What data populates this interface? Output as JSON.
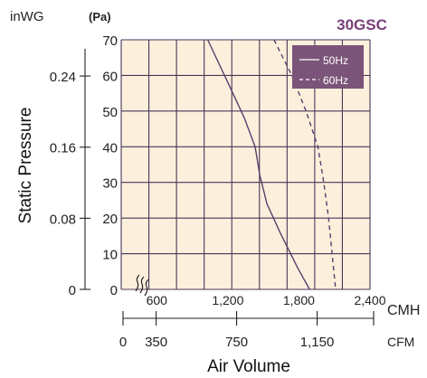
{
  "chart_data": {
    "type": "line",
    "title": "30GSC",
    "xlabel": "Air Volume",
    "ylabel": "Static Pressure",
    "grid": true,
    "legend_position": "top-right",
    "x_unit_primary": "CMH",
    "x_unit_secondary": "CFM",
    "y_unit_left_outer": "inWG",
    "y_unit_left_inner": "(Pa)",
    "x_ticks_cmh": [
      "600",
      "1,200",
      "1,800",
      "2,400"
    ],
    "x_ticks_cfm": [
      "0",
      "350",
      "750",
      "1,150"
    ],
    "y_ticks_pa": [
      "0",
      "10",
      "20",
      "30",
      "40",
      "50",
      "60",
      "70"
    ],
    "y_ticks_inwg": [
      "0",
      "0.08",
      "0.16",
      "0.24"
    ],
    "xlim": [
      300,
      2400
    ],
    "ylim": [
      0,
      70
    ],
    "series": [
      {
        "name": "50Hz",
        "style": "solid",
        "x": [
          1030,
          1200,
          1340,
          1430,
          1470,
          1530,
          1640,
          1790,
          1890
        ],
        "y": [
          70,
          58,
          48,
          40,
          32,
          24,
          16,
          6,
          0
        ]
      },
      {
        "name": "60Hz",
        "style": "dashed",
        "x": [
          1590,
          1740,
          1860,
          1960,
          2010,
          2050,
          2080,
          2110
        ],
        "y": [
          70,
          60,
          50,
          40,
          30,
          20,
          10,
          0
        ]
      }
    ],
    "colors": {
      "line": "#5b3d6e",
      "grid": "#4a3558",
      "background": "#fcf0dc",
      "title": "#7a3f7a",
      "legend_bg": "#7b5479",
      "legend_text": "#ffffff",
      "text": "#222222"
    }
  }
}
